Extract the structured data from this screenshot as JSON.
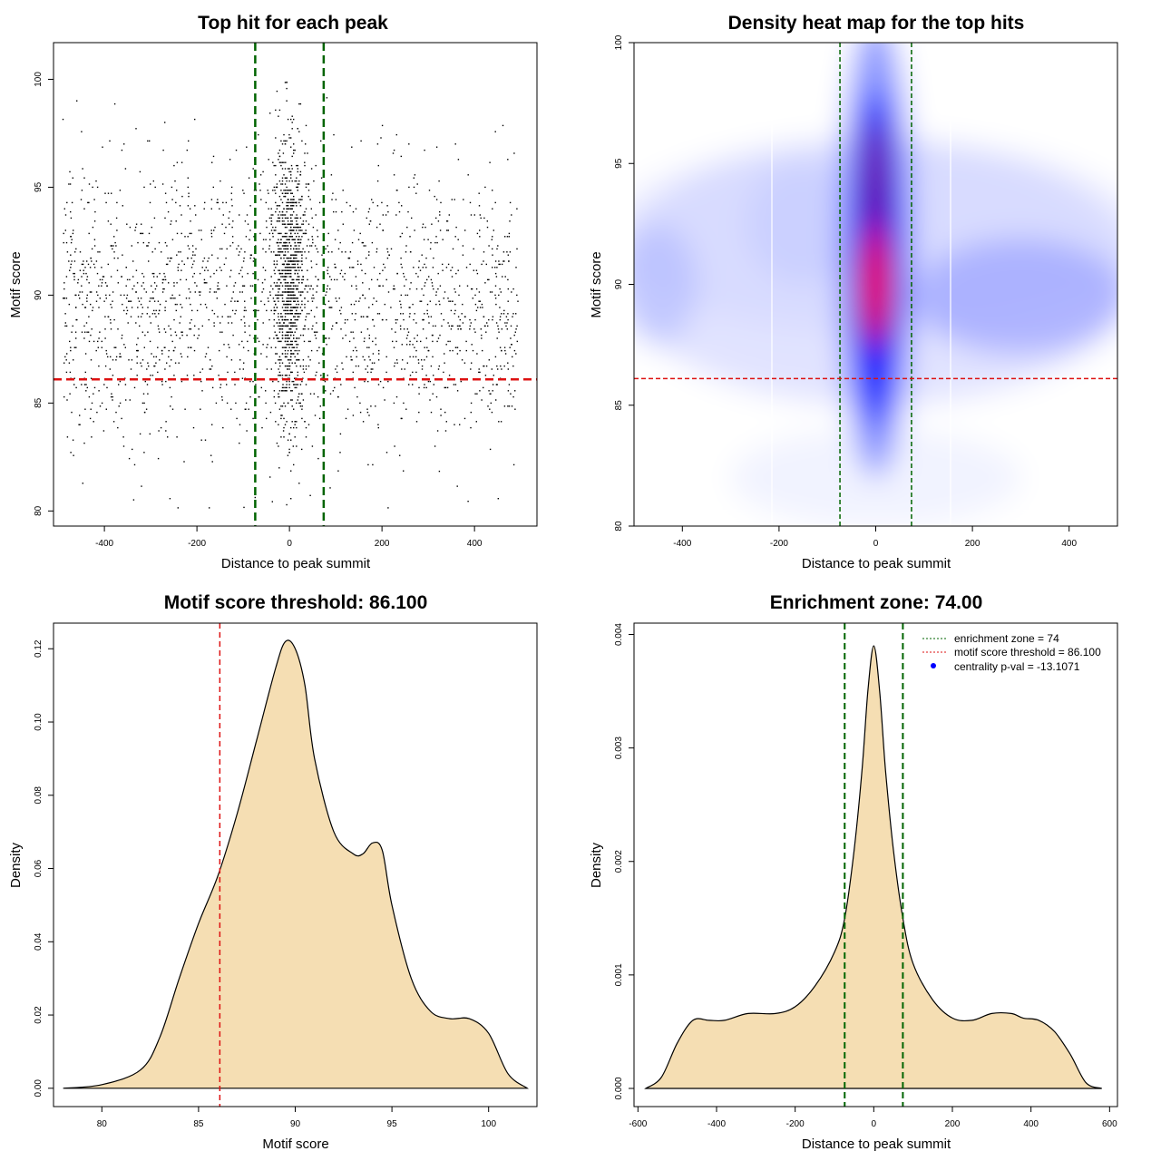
{
  "chart_data": [
    {
      "type": "scatter",
      "title": "Top hit for each peak",
      "xlabel": "Distance to peak summit",
      "ylabel": "Motif score",
      "xlim": [
        -500,
        500
      ],
      "ylim": [
        80,
        100
      ],
      "xticks": [
        "-400",
        "-200",
        "0",
        "200",
        "400"
      ],
      "yticks": [
        "80",
        "85",
        "90",
        "95",
        "100"
      ],
      "grid": false,
      "point_count": 3000,
      "distribution": {
        "central_fraction": 0.33,
        "central_x_sd": 18,
        "central_y_mean": 91,
        "central_y_sd": 3.4,
        "background_y_mean": 89.5,
        "background_y_sd": 3.2
      },
      "reference_lines": [
        {
          "orientation": "vertical",
          "x": -74,
          "color": "#006400",
          "style": "dashed"
        },
        {
          "orientation": "vertical",
          "x": 74,
          "color": "#006400",
          "style": "dashed"
        },
        {
          "orientation": "horizontal",
          "y": 86.1,
          "color": "#dd1111",
          "style": "dashed"
        }
      ]
    },
    {
      "type": "heatmap",
      "title": "Density heat map for the top hits",
      "xlabel": "Distance to peak summit",
      "ylabel": "Motif score",
      "xlim": [
        -500,
        500
      ],
      "ylim": [
        80,
        100
      ],
      "xticks": [
        "-400",
        "-200",
        "0",
        "200",
        "400"
      ],
      "yticks": [
        "80",
        "85",
        "90",
        "95",
        "100"
      ],
      "colors": [
        "#ffffff",
        "#0000ff",
        "#ff0000"
      ],
      "peak_center": {
        "x": 0,
        "y": 90
      },
      "secondary_peak": {
        "x": 0,
        "y": 94
      },
      "reference_lines": [
        {
          "orientation": "vertical",
          "x": -74,
          "color": "#006400",
          "style": "dashed"
        },
        {
          "orientation": "vertical",
          "x": 74,
          "color": "#006400",
          "style": "dashed"
        },
        {
          "orientation": "horizontal",
          "y": 86.1,
          "color": "#dd1111",
          "style": "dashed"
        }
      ]
    },
    {
      "type": "area",
      "title": "Motif score threshold: 86.100",
      "xlabel": "Motif score",
      "ylabel": "Density",
      "xlim": [
        77.5,
        102.5
      ],
      "ylim": [
        -0.005,
        0.127
      ],
      "xticks": [
        "80",
        "85",
        "90",
        "95",
        "100"
      ],
      "yticks": [
        "0.00",
        "0.02",
        "0.04",
        "0.06",
        "0.08",
        "0.10",
        "0.12"
      ],
      "fill_color": "#f5deb3",
      "x": [
        78,
        80,
        82,
        83,
        84,
        85,
        86,
        87,
        88,
        89,
        89.5,
        90,
        90.5,
        91,
        92,
        93,
        93.5,
        94,
        94.5,
        95,
        96,
        97,
        98,
        99,
        100,
        101,
        102
      ],
      "y": [
        0,
        0.001,
        0.005,
        0.014,
        0.03,
        0.045,
        0.058,
        0.075,
        0.095,
        0.115,
        0.122,
        0.12,
        0.11,
        0.09,
        0.07,
        0.064,
        0.064,
        0.067,
        0.065,
        0.05,
        0.03,
        0.021,
        0.019,
        0.019,
        0.015,
        0.004,
        0
      ],
      "reference_lines": [
        {
          "orientation": "vertical",
          "x": 86.1,
          "color": "#dd1111",
          "style": "dashed"
        }
      ]
    },
    {
      "type": "area",
      "title": "Enrichment zone: 74.00",
      "xlabel": "Distance to peak summit",
      "ylabel": "Density",
      "xlim": [
        -600,
        600
      ],
      "ylim": [
        -0.00016,
        0.0041
      ],
      "xticks": [
        "-600",
        "-400",
        "-200",
        "0",
        "200",
        "400",
        "600"
      ],
      "yticks": [
        "0.000",
        "0.001",
        "0.002",
        "0.003",
        "0.004"
      ],
      "fill_color": "#f5deb3",
      "x": [
        -580,
        -540,
        -500,
        -460,
        -420,
        -380,
        -320,
        -250,
        -200,
        -150,
        -100,
        -74,
        -50,
        -30,
        -15,
        0,
        15,
        30,
        50,
        74,
        100,
        150,
        200,
        250,
        300,
        350,
        380,
        420,
        460,
        500,
        540,
        580
      ],
      "y": [
        0,
        0.0001,
        0.0004,
        0.0006,
        0.0006,
        0.0006,
        0.00066,
        0.00066,
        0.00072,
        0.0009,
        0.0012,
        0.0015,
        0.0021,
        0.0028,
        0.0035,
        0.0039,
        0.0035,
        0.0028,
        0.0021,
        0.0015,
        0.0011,
        0.00078,
        0.00062,
        0.0006,
        0.00066,
        0.00066,
        0.00062,
        0.0006,
        0.0005,
        0.0003,
        5e-05,
        0
      ],
      "reference_lines": [
        {
          "orientation": "vertical",
          "x": -74,
          "color": "#006400",
          "style": "dashed"
        },
        {
          "orientation": "vertical",
          "x": 74,
          "color": "#006400",
          "style": "dashed"
        }
      ],
      "legend": {
        "placement": "top-right",
        "entries": [
          {
            "label": "enrichment zone = 74",
            "color": "#006400",
            "symbol": "dotted-line"
          },
          {
            "label": "motif score threshold = 86.100",
            "color": "#dd1111",
            "symbol": "dotted-line"
          },
          {
            "label": "centrality p-val = -13.1071",
            "color": "#0000ff",
            "symbol": "dot"
          }
        ]
      }
    }
  ]
}
